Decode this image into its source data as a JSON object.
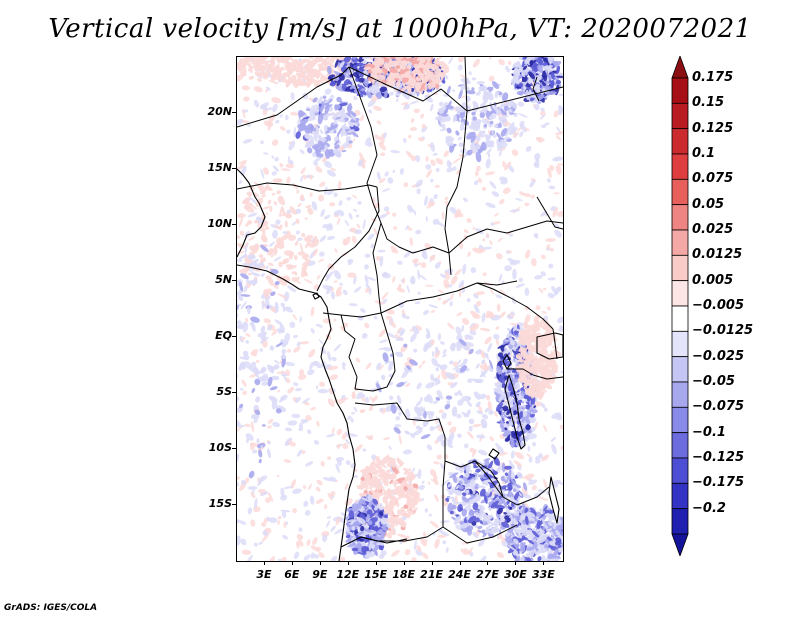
{
  "title": "Vertical velocity [m/s] at 1000hPa, VT: 2020072021",
  "footer": "GrADS: IGES/COLA",
  "map": {
    "lat_range": [
      -20,
      25
    ],
    "lon_range": [
      0,
      35
    ],
    "lat_ticks": [
      {
        "value": 20,
        "label": "20N"
      },
      {
        "value": 15,
        "label": "15N"
      },
      {
        "value": 10,
        "label": "10N"
      },
      {
        "value": 5,
        "label": "5N"
      },
      {
        "value": 0,
        "label": "EQ"
      },
      {
        "value": -5,
        "label": "5S"
      },
      {
        "value": -10,
        "label": "10S"
      },
      {
        "value": -15,
        "label": "15S"
      }
    ],
    "lon_ticks": [
      {
        "value": 3,
        "label": "3E"
      },
      {
        "value": 6,
        "label": "6E"
      },
      {
        "value": 9,
        "label": "9E"
      },
      {
        "value": 12,
        "label": "12E"
      },
      {
        "value": 15,
        "label": "15E"
      },
      {
        "value": 18,
        "label": "18E"
      },
      {
        "value": 21,
        "label": "21E"
      },
      {
        "value": 24,
        "label": "24E"
      },
      {
        "value": 27,
        "label": "27E"
      },
      {
        "value": 30,
        "label": "30E"
      },
      {
        "value": 33,
        "label": "33E"
      }
    ]
  },
  "colorbar": {
    "levels": [
      {
        "label": "0.175",
        "color": "#a50f15"
      },
      {
        "label": "0.15",
        "color": "#b81c22"
      },
      {
        "label": "0.125",
        "color": "#cb2a2f"
      },
      {
        "label": "0.1",
        "color": "#de3e3f"
      },
      {
        "label": "0.075",
        "color": "#e8605c"
      },
      {
        "label": "0.05",
        "color": "#ef8582"
      },
      {
        "label": "0.025",
        "color": "#f5a9a6"
      },
      {
        "label": "0.0125",
        "color": "#f9cbc9"
      },
      {
        "label": "0.005",
        "color": "#fce6e5"
      },
      {
        "label": "−0.005",
        "color": "#ffffff"
      },
      {
        "label": "−0.0125",
        "color": "#e4e4fa"
      },
      {
        "label": "−0.025",
        "color": "#c6c6f5"
      },
      {
        "label": "−0.05",
        "color": "#a8a8ef"
      },
      {
        "label": "−0.075",
        "color": "#8a8ae8"
      },
      {
        "label": "−0.1",
        "color": "#6c6cdf"
      },
      {
        "label": "−0.125",
        "color": "#4e4ed4"
      },
      {
        "label": "−0.175",
        "color": "#3333c4"
      },
      {
        "label": "−0.2",
        "color": "#1f1fb0"
      }
    ],
    "top_arrow_color": "#8b0f12",
    "bottom_arrow_color": "#14149a",
    "middle_color": "#ffffff"
  },
  "field_colors": {
    "positive_light": "#fbd9d8",
    "positive_mid": "#f4a9a6",
    "negative_light": "#dcdcf8",
    "negative_mid": "#a9a9ee",
    "negative_strong": "#5c5cd6",
    "negative_dark": "#2a2aa6"
  }
}
